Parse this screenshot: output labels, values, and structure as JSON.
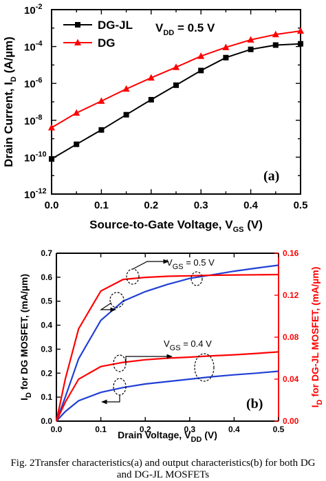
{
  "caption": {
    "line1": "Fig. 2Transfer characteristics(a) and output characteristics(b) for both DG",
    "line2": "and DG-JL MOSFETs"
  },
  "chart_data": [
    {
      "type": "line",
      "panel_label": "(a)",
      "xlabel": "Source-to-Gate Voltage, V",
      "xlabel_sub": "GS",
      "xlabel_tail": " (V)",
      "ylabel": "Drain Current, I",
      "ylabel_sub": "D",
      "ylabel_tail": " (A/µm)",
      "xlim": [
        0.0,
        0.5
      ],
      "xticks": [
        0.0,
        0.1,
        0.2,
        0.3,
        0.4,
        0.5
      ],
      "xtick_labels": [
        "0.0",
        "0.1",
        "0.2",
        "0.3",
        "0.4",
        "0.5"
      ],
      "ylog": true,
      "ylim_exp": [
        -12,
        -2
      ],
      "yticks_exp": [
        -12,
        -10,
        -8,
        -6,
        -4,
        -2
      ],
      "ytick_base": "10",
      "ytick_exps": [
        "-12",
        "-10",
        "-8",
        "-6",
        "-4",
        "-2"
      ],
      "legend_position": "top-left",
      "annotation": {
        "text": "V",
        "sub": "DD",
        "tail": " = 0.5 V"
      },
      "series": [
        {
          "name": "DG-JL",
          "color": "#000000",
          "marker": "square",
          "x": [
            0.0,
            0.05,
            0.1,
            0.15,
            0.2,
            0.25,
            0.3,
            0.35,
            0.4,
            0.45,
            0.5
          ],
          "y": [
            8e-11,
            5e-10,
            3e-09,
            2e-08,
            1.3e-07,
            8e-07,
            5e-06,
            2.5e-05,
            7e-05,
            0.00012,
            0.00014
          ]
        },
        {
          "name": "DG",
          "color": "#ff0000",
          "marker": "triangle",
          "x": [
            0.0,
            0.05,
            0.1,
            0.15,
            0.2,
            0.25,
            0.3,
            0.35,
            0.4,
            0.45,
            0.5
          ],
          "y": [
            4e-09,
            2.5e-08,
            1.1e-07,
            5e-07,
            2e-06,
            7.5e-06,
            3e-05,
            9e-05,
            0.00023,
            0.00045,
            0.0007
          ]
        }
      ]
    },
    {
      "type": "line",
      "panel_label": "(b)",
      "xlabel": "Drain Voltage, V",
      "xlabel_sub": "DD",
      "xlabel_tail": " (V)",
      "ylabel_left": "I",
      "ylabel_left_sub": "D",
      "ylabel_left_tail": " for DG MOSFET, (mA/µm)",
      "ylabel_right": "I",
      "ylabel_right_sub": "D",
      "ylabel_right_tail": " for DG-JL MOSFET, (mA/µm)",
      "xlim": [
        0.0,
        0.5
      ],
      "xticks": [
        0.0,
        0.1,
        0.2,
        0.3,
        0.4,
        0.5
      ],
      "xtick_labels": [
        "0.0",
        "0.1",
        "0.2",
        "0.3",
        "0.4",
        "0.5"
      ],
      "ylim_left": [
        0.0,
        0.7
      ],
      "yticks_left": [
        0.0,
        0.1,
        0.2,
        0.3,
        0.4,
        0.5,
        0.6,
        0.7
      ],
      "ytick_labels_left": [
        "0.0",
        "0.1",
        "0.2",
        "0.3",
        "0.4",
        "0.5",
        "0.6",
        "0.7"
      ],
      "ylim_right": [
        0.0,
        0.16
      ],
      "yticks_right": [
        0.0,
        0.04,
        0.08,
        0.12,
        0.16
      ],
      "ytick_labels_right": [
        "0.00",
        "0.04",
        "0.08",
        "0.12",
        "0.16"
      ],
      "left_axis_color": "#000000",
      "right_axis_color": "#ff0000",
      "annotations": [
        {
          "text": "V",
          "sub": "GS",
          "tail": " = 0.5 V"
        },
        {
          "text": "V",
          "sub": "GS",
          "tail": " = 0.4 V"
        }
      ],
      "series": [
        {
          "axis": "left",
          "color": "#1f3fd6",
          "x": [
            0.0,
            0.02,
            0.05,
            0.1,
            0.15,
            0.2,
            0.25,
            0.3,
            0.35,
            0.4,
            0.45,
            0.5
          ],
          "y": [
            0.0,
            0.1,
            0.26,
            0.42,
            0.5,
            0.54,
            0.57,
            0.595,
            0.61,
            0.625,
            0.638,
            0.65
          ]
        },
        {
          "axis": "right",
          "color": "#ff0000",
          "x": [
            0.0,
            0.02,
            0.05,
            0.1,
            0.15,
            0.2,
            0.25,
            0.3,
            0.35,
            0.4,
            0.45,
            0.5
          ],
          "y": [
            0.0,
            0.04,
            0.088,
            0.124,
            0.135,
            0.137,
            0.138,
            0.1385,
            0.139,
            0.1393,
            0.1395,
            0.1397
          ]
        },
        {
          "axis": "left",
          "color": "#1f3fd6",
          "x": [
            0.0,
            0.02,
            0.05,
            0.1,
            0.15,
            0.2,
            0.25,
            0.3,
            0.35,
            0.4,
            0.45,
            0.5
          ],
          "y": [
            0.0,
            0.04,
            0.085,
            0.12,
            0.14,
            0.155,
            0.165,
            0.175,
            0.185,
            0.193,
            0.2,
            0.208
          ]
        },
        {
          "axis": "right",
          "color": "#ff0000",
          "x": [
            0.0,
            0.02,
            0.05,
            0.1,
            0.15,
            0.2,
            0.25,
            0.3,
            0.35,
            0.4,
            0.45,
            0.5
          ],
          "y": [
            0.0,
            0.018,
            0.04,
            0.052,
            0.056,
            0.0585,
            0.06,
            0.061,
            0.0622,
            0.0632,
            0.0645,
            0.066
          ]
        }
      ]
    }
  ]
}
